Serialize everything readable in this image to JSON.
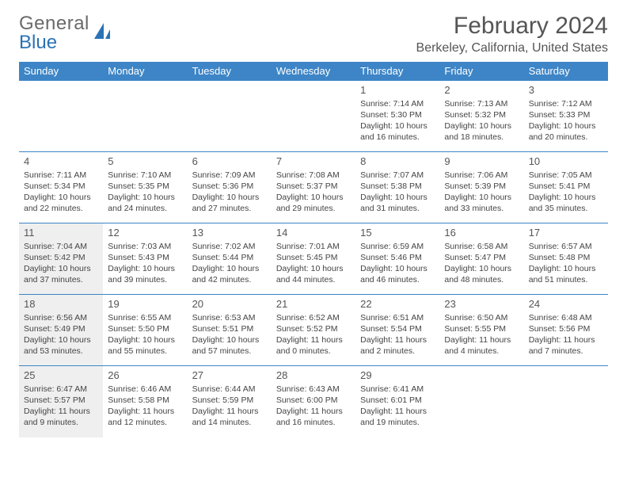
{
  "logo": {
    "line1": "General",
    "line2": "Blue"
  },
  "title": "February 2024",
  "location": "Berkeley, California, United States",
  "colors": {
    "header_bg": "#3d85c6",
    "header_text": "#ffffff",
    "row_border": "#3d85c6",
    "shaded_bg": "#efefef",
    "logo_gray": "#6a6a6a",
    "logo_blue": "#2a72b5"
  },
  "day_headers": [
    "Sunday",
    "Monday",
    "Tuesday",
    "Wednesday",
    "Thursday",
    "Friday",
    "Saturday"
  ],
  "weeks": [
    [
      {
        "blank": true
      },
      {
        "blank": true
      },
      {
        "blank": true
      },
      {
        "blank": true
      },
      {
        "num": "1",
        "sunrise": "Sunrise: 7:14 AM",
        "sunset": "Sunset: 5:30 PM",
        "daylight": "Daylight: 10 hours and 16 minutes."
      },
      {
        "num": "2",
        "sunrise": "Sunrise: 7:13 AM",
        "sunset": "Sunset: 5:32 PM",
        "daylight": "Daylight: 10 hours and 18 minutes."
      },
      {
        "num": "3",
        "sunrise": "Sunrise: 7:12 AM",
        "sunset": "Sunset: 5:33 PM",
        "daylight": "Daylight: 10 hours and 20 minutes."
      }
    ],
    [
      {
        "num": "4",
        "sunrise": "Sunrise: 7:11 AM",
        "sunset": "Sunset: 5:34 PM",
        "daylight": "Daylight: 10 hours and 22 minutes."
      },
      {
        "num": "5",
        "sunrise": "Sunrise: 7:10 AM",
        "sunset": "Sunset: 5:35 PM",
        "daylight": "Daylight: 10 hours and 24 minutes."
      },
      {
        "num": "6",
        "sunrise": "Sunrise: 7:09 AM",
        "sunset": "Sunset: 5:36 PM",
        "daylight": "Daylight: 10 hours and 27 minutes."
      },
      {
        "num": "7",
        "sunrise": "Sunrise: 7:08 AM",
        "sunset": "Sunset: 5:37 PM",
        "daylight": "Daylight: 10 hours and 29 minutes."
      },
      {
        "num": "8",
        "sunrise": "Sunrise: 7:07 AM",
        "sunset": "Sunset: 5:38 PM",
        "daylight": "Daylight: 10 hours and 31 minutes."
      },
      {
        "num": "9",
        "sunrise": "Sunrise: 7:06 AM",
        "sunset": "Sunset: 5:39 PM",
        "daylight": "Daylight: 10 hours and 33 minutes."
      },
      {
        "num": "10",
        "sunrise": "Sunrise: 7:05 AM",
        "sunset": "Sunset: 5:41 PM",
        "daylight": "Daylight: 10 hours and 35 minutes."
      }
    ],
    [
      {
        "num": "11",
        "shaded": true,
        "sunrise": "Sunrise: 7:04 AM",
        "sunset": "Sunset: 5:42 PM",
        "daylight": "Daylight: 10 hours and 37 minutes."
      },
      {
        "num": "12",
        "sunrise": "Sunrise: 7:03 AM",
        "sunset": "Sunset: 5:43 PM",
        "daylight": "Daylight: 10 hours and 39 minutes."
      },
      {
        "num": "13",
        "sunrise": "Sunrise: 7:02 AM",
        "sunset": "Sunset: 5:44 PM",
        "daylight": "Daylight: 10 hours and 42 minutes."
      },
      {
        "num": "14",
        "sunrise": "Sunrise: 7:01 AM",
        "sunset": "Sunset: 5:45 PM",
        "daylight": "Daylight: 10 hours and 44 minutes."
      },
      {
        "num": "15",
        "sunrise": "Sunrise: 6:59 AM",
        "sunset": "Sunset: 5:46 PM",
        "daylight": "Daylight: 10 hours and 46 minutes."
      },
      {
        "num": "16",
        "sunrise": "Sunrise: 6:58 AM",
        "sunset": "Sunset: 5:47 PM",
        "daylight": "Daylight: 10 hours and 48 minutes."
      },
      {
        "num": "17",
        "sunrise": "Sunrise: 6:57 AM",
        "sunset": "Sunset: 5:48 PM",
        "daylight": "Daylight: 10 hours and 51 minutes."
      }
    ],
    [
      {
        "num": "18",
        "shaded": true,
        "sunrise": "Sunrise: 6:56 AM",
        "sunset": "Sunset: 5:49 PM",
        "daylight": "Daylight: 10 hours and 53 minutes."
      },
      {
        "num": "19",
        "sunrise": "Sunrise: 6:55 AM",
        "sunset": "Sunset: 5:50 PM",
        "daylight": "Daylight: 10 hours and 55 minutes."
      },
      {
        "num": "20",
        "sunrise": "Sunrise: 6:53 AM",
        "sunset": "Sunset: 5:51 PM",
        "daylight": "Daylight: 10 hours and 57 minutes."
      },
      {
        "num": "21",
        "sunrise": "Sunrise: 6:52 AM",
        "sunset": "Sunset: 5:52 PM",
        "daylight": "Daylight: 11 hours and 0 minutes."
      },
      {
        "num": "22",
        "sunrise": "Sunrise: 6:51 AM",
        "sunset": "Sunset: 5:54 PM",
        "daylight": "Daylight: 11 hours and 2 minutes."
      },
      {
        "num": "23",
        "sunrise": "Sunrise: 6:50 AM",
        "sunset": "Sunset: 5:55 PM",
        "daylight": "Daylight: 11 hours and 4 minutes."
      },
      {
        "num": "24",
        "sunrise": "Sunrise: 6:48 AM",
        "sunset": "Sunset: 5:56 PM",
        "daylight": "Daylight: 11 hours and 7 minutes."
      }
    ],
    [
      {
        "num": "25",
        "shaded": true,
        "sunrise": "Sunrise: 6:47 AM",
        "sunset": "Sunset: 5:57 PM",
        "daylight": "Daylight: 11 hours and 9 minutes."
      },
      {
        "num": "26",
        "sunrise": "Sunrise: 6:46 AM",
        "sunset": "Sunset: 5:58 PM",
        "daylight": "Daylight: 11 hours and 12 minutes."
      },
      {
        "num": "27",
        "sunrise": "Sunrise: 6:44 AM",
        "sunset": "Sunset: 5:59 PM",
        "daylight": "Daylight: 11 hours and 14 minutes."
      },
      {
        "num": "28",
        "sunrise": "Sunrise: 6:43 AM",
        "sunset": "Sunset: 6:00 PM",
        "daylight": "Daylight: 11 hours and 16 minutes."
      },
      {
        "num": "29",
        "sunrise": "Sunrise: 6:41 AM",
        "sunset": "Sunset: 6:01 PM",
        "daylight": "Daylight: 11 hours and 19 minutes."
      },
      {
        "blank": true
      },
      {
        "blank": true
      }
    ]
  ]
}
